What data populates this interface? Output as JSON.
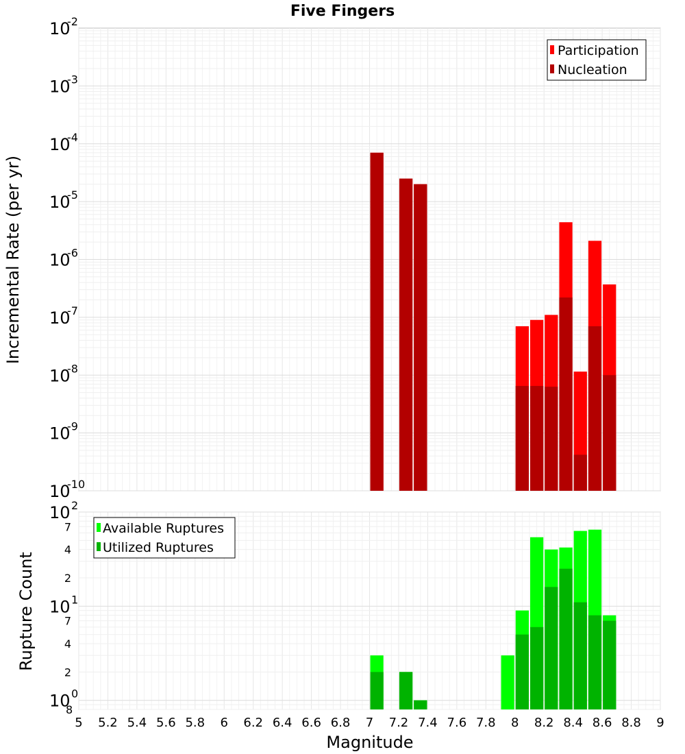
{
  "chart_data": [
    {
      "type": "bar",
      "title": "Five Fingers",
      "ylabel": "Incremental Rate (per yr)",
      "yscale": "log",
      "ylim": [
        1e-10,
        0.01
      ],
      "xlim": [
        5,
        9
      ],
      "bar_width": 0.1,
      "grid": true,
      "legend_position": "top-right",
      "series": [
        {
          "name": "Participation",
          "color": "#ff0000",
          "x": [
            7.05,
            7.25,
            7.35,
            8.05,
            8.15,
            8.25,
            8.35,
            8.45,
            8.55,
            8.65
          ],
          "values": [
            7e-05,
            2.5e-05,
            2e-05,
            7e-08,
            9e-08,
            1.1e-07,
            4.4e-06,
            1.15e-08,
            2.1e-06,
            3.7e-07
          ]
        },
        {
          "name": "Nucleation",
          "color": "#b30000",
          "x": [
            7.05,
            7.25,
            7.35,
            8.05,
            8.15,
            8.25,
            8.35,
            8.45,
            8.55,
            8.65
          ],
          "values": [
            7e-05,
            2.5e-05,
            2e-05,
            6.5e-09,
            6.5e-09,
            6.3e-09,
            2.2e-07,
            4.2e-10,
            7e-08,
            1e-08
          ]
        }
      ]
    },
    {
      "type": "bar",
      "xlabel": "Magnitude",
      "ylabel": "Rupture Count",
      "yscale": "log",
      "ylim": [
        0.8,
        100
      ],
      "xlim": [
        5,
        9
      ],
      "bar_width": 0.1,
      "grid": true,
      "legend_position": "top-left",
      "xticks": [
        "5",
        "5.2",
        "5.4",
        "5.6",
        "5.8",
        "6",
        "6.2",
        "6.4",
        "6.6",
        "6.8",
        "7",
        "7.2",
        "7.4",
        "7.6",
        "7.8",
        "8",
        "8.2",
        "8.4",
        "8.6",
        "8.8",
        "9"
      ],
      "series": [
        {
          "name": "Available Ruptures",
          "color": "#00ff00",
          "x": [
            7.05,
            7.25,
            7.35,
            7.95,
            8.05,
            8.15,
            8.25,
            8.35,
            8.45,
            8.55,
            8.65
          ],
          "values": [
            3,
            2,
            1,
            3,
            9,
            54,
            40,
            42,
            63,
            65,
            8
          ]
        },
        {
          "name": "Utilized Ruptures",
          "color": "#00b300",
          "x": [
            7.05,
            7.25,
            7.35,
            8.05,
            8.15,
            8.25,
            8.35,
            8.45,
            8.55,
            8.65
          ],
          "values": [
            2,
            2,
            1,
            5,
            6,
            16,
            25,
            11,
            8,
            7
          ]
        }
      ]
    }
  ]
}
